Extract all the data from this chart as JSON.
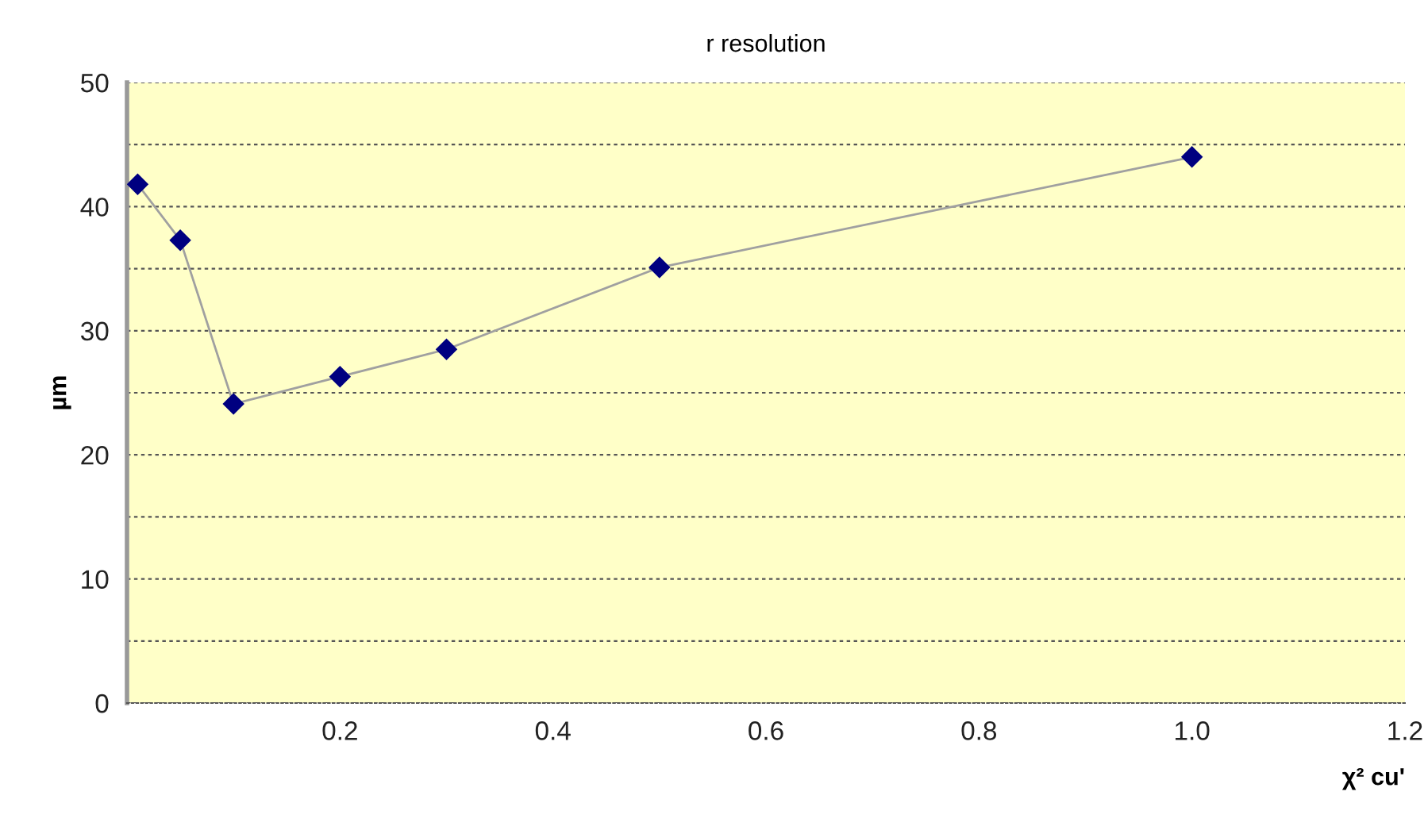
{
  "chart_data": {
    "type": "line",
    "title": "r resolution",
    "xlabel": "χ² cu'",
    "ylabel": "µm",
    "x": [
      0.01,
      0.05,
      0.1,
      0.2,
      0.3,
      0.5,
      1.0
    ],
    "series": [
      {
        "color": "#000080",
        "values": [
          41.8,
          37.3,
          24.1,
          26.3,
          28.5,
          35.1,
          44.0
        ]
      }
    ],
    "xlim": [
      0,
      1.2
    ],
    "xticks": [
      0.2,
      0.4,
      0.6,
      0.8,
      {
        "value": 1.0,
        "label": "1.0"
      },
      1.2
    ],
    "ylim": [
      0,
      50
    ],
    "yticks": [
      0,
      {
        "value": 5,
        "label": null
      },
      10,
      {
        "value": 15,
        "label": null
      },
      20,
      {
        "value": 25,
        "label": null
      },
      30,
      {
        "value": 35,
        "label": null
      },
      40,
      {
        "value": 45,
        "label": null
      },
      50
    ],
    "grid": "y",
    "marker": "diamond",
    "line_style": "solid",
    "legend": false
  }
}
